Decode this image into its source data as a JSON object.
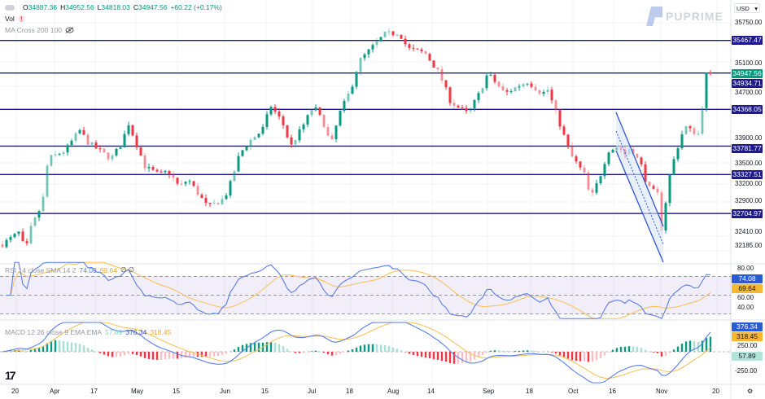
{
  "header": {
    "open_label": "O",
    "open": "34887.36",
    "high_label": "H",
    "high": "34952.56",
    "low_label": "L",
    "low": "34818.03",
    "close_label": "C",
    "close": "34947.56",
    "change": "+60.22 (+0.17%)",
    "vol_label": "Vol",
    "vol_warning": "!",
    "ma_label": "MA Cross 200 100",
    "ma_icon": "eye-off-icon"
  },
  "brand": {
    "watermark": "PUPRIME"
  },
  "currency": "USD",
  "colors": {
    "up": "#089981",
    "down": "#f23645",
    "level_line": "#1e1a8c",
    "rsi": "#5b7de8",
    "signal": "#f7c35f",
    "channel": "#2f55d4"
  },
  "price_axis": [
    "35750.00",
    "35100.00",
    "34700.00",
    "33900.00",
    "33500.00",
    "33200.00",
    "32900.00",
    "32410.00",
    "32185.00"
  ],
  "time_axis": [
    "20",
    "Apr",
    "17",
    "May",
    "15",
    "Jun",
    "15",
    "Jul",
    "18",
    "Aug",
    "14",
    "Sep",
    "18",
    "Oct",
    "16",
    "Nov",
    "20"
  ],
  "rsi": {
    "legend": "RSI 14 close SMA 14 2",
    "value": "74.08",
    "sma": "69.64",
    "extra": "∅ ∅",
    "axis": [
      "80.00",
      "60.00",
      "40.00"
    ],
    "levels": [
      70,
      50,
      30
    ]
  },
  "macd": {
    "legend": "MACD 12 26 close 9 EMA EMA",
    "hist": "57.89",
    "macd": "376.34",
    "signal": "318.45",
    "axis": [
      "250.00",
      "-250.00"
    ]
  },
  "chart_data": {
    "type": "candlestick",
    "currency": "USD",
    "levels": [
      35467.47,
      34947.56,
      34368.05,
      33781.77,
      33327.51,
      32704.97
    ],
    "current_price": 34947.56,
    "extra_price_label": 34934.71,
    "close_path": [
      [
        "Mar 14",
        32214
      ],
      [
        "Mar 20",
        32409
      ],
      [
        "Mar 22",
        32084
      ],
      [
        "Mar 24",
        32474
      ],
      [
        "Mar 28",
        32864
      ],
      [
        "Mar 30",
        33579
      ],
      [
        "Apr 5",
        33709
      ],
      [
        "Apr 10",
        34034
      ],
      [
        "Apr 13",
        33839
      ],
      [
        "Apr 21",
        33579
      ],
      [
        "Apr 25",
        33839
      ],
      [
        "Apr 27",
        34164
      ],
      [
        "May 3",
        33449
      ],
      [
        "May 8",
        33319
      ],
      [
        "May 11",
        33384
      ],
      [
        "May 15",
        33124
      ],
      [
        "May 18",
        33254
      ],
      [
        "May 25",
        32799
      ],
      [
        "May 30",
        32929
      ],
      [
        "Jun 1",
        33059
      ],
      [
        "Jun 5",
        33644
      ],
      [
        "Jun 8",
        33839
      ],
      [
        "Jun 13",
        34034
      ],
      [
        "Jun 16",
        34424
      ],
      [
        "Jun 20",
        34164
      ],
      [
        "Jun 23",
        33774
      ],
      [
        "Jun 28",
        34164
      ],
      [
        "Jul 1",
        34424
      ],
      [
        "Jul 5",
        34099
      ],
      [
        "Jul 7",
        33774
      ],
      [
        "Jul 10",
        34294
      ],
      [
        "Jul 14",
        34684
      ],
      [
        "Jul 17",
        35139
      ],
      [
        "Jul 21",
        35334
      ],
      [
        "Jul 26",
        35568
      ],
      [
        "Jul 31",
        35594
      ],
      [
        "Aug 3",
        35334
      ],
      [
        "Aug 9",
        35269
      ],
      [
        "Aug 14",
        34944
      ],
      [
        "Aug 18",
        34489
      ],
      [
        "Aug 24",
        34294
      ],
      [
        "Aug 28",
        34619
      ],
      [
        "Aug 31",
        34944
      ],
      [
        "Sep 6",
        34619
      ],
      [
        "Sep 11",
        34749
      ],
      [
        "Sep 14",
        34814
      ],
      [
        "Sep 19",
        34619
      ],
      [
        "Sep 21",
        34684
      ],
      [
        "Sep 25",
        34164
      ],
      [
        "Sep 29",
        33644
      ],
      [
        "Oct 4",
        33319
      ],
      [
        "Oct 6",
        32929
      ],
      [
        "Oct 10",
        33384
      ],
      [
        "Oct 12",
        33709
      ],
      [
        "Oct 16",
        33774
      ],
      [
        "Oct 18",
        33644
      ],
      [
        "Oct 20",
        33774
      ],
      [
        "Oct 24",
        33449
      ],
      [
        "Oct 26",
        33124
      ],
      [
        "Oct 30",
        32994
      ],
      [
        "Oct 31",
        32409
      ],
      [
        "Nov 1",
        32799
      ],
      [
        "Nov 3",
        33384
      ],
      [
        "Nov 6",
        33839
      ],
      [
        "Nov 8",
        34099
      ],
      [
        "Nov 10",
        34034
      ],
      [
        "Nov 13",
        33969
      ],
      [
        "Nov 14",
        34359
      ],
      [
        "Nov 15",
        34814
      ],
      [
        "Nov 16",
        35009
      ],
      [
        "Nov 17",
        34947.56
      ]
    ],
    "channel": {
      "type": "descending channel",
      "from": "Oct 16",
      "to": "Oct 31"
    }
  }
}
